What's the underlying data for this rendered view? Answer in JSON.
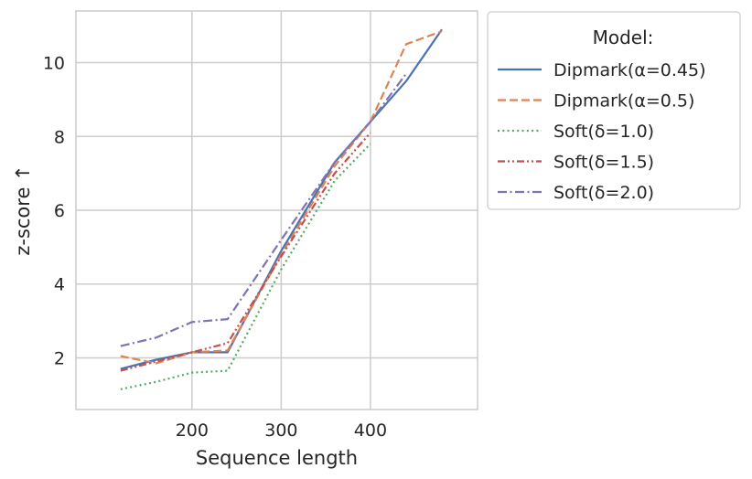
{
  "chart_data": {
    "type": "line",
    "xlabel": "Sequence length",
    "ylabel": "z-score ↑",
    "xlim": [
      70,
      520
    ],
    "ylim": [
      0.6,
      11.4
    ],
    "xticks": [
      200,
      300,
      400
    ],
    "yticks": [
      2,
      4,
      6,
      8,
      10
    ],
    "grid": true,
    "legend": {
      "title": "Model:",
      "placement": "outside-right-top"
    },
    "series": [
      {
        "name": "Dipmark(α=0.45)",
        "color": "#4C72B0",
        "dash": "solid",
        "x": [
          120,
          160,
          200,
          240,
          300,
          360,
          400,
          440,
          480
        ],
        "y": [
          1.7,
          1.95,
          2.15,
          2.15,
          4.9,
          7.3,
          8.4,
          9.5,
          10.9
        ]
      },
      {
        "name": "Dipmark(α=0.5)",
        "color": "#DD8452",
        "dash": "dashed",
        "x": [
          120,
          160,
          200,
          240,
          300,
          360,
          400,
          440,
          480
        ],
        "y": [
          2.05,
          1.85,
          2.15,
          2.2,
          4.8,
          7.2,
          8.4,
          10.5,
          10.85
        ]
      },
      {
        "name": "Soft(δ=1.0)",
        "color": "#55A868",
        "dash": "dotted",
        "x": [
          120,
          160,
          200,
          240,
          300,
          360,
          400
        ],
        "y": [
          1.15,
          1.35,
          1.6,
          1.65,
          4.4,
          6.8,
          7.8
        ]
      },
      {
        "name": "Soft(δ=1.5)",
        "color": "#C44E52",
        "dash": "dashdotdot",
        "x": [
          120,
          160,
          200,
          240,
          300,
          360,
          400
        ],
        "y": [
          1.65,
          1.9,
          2.15,
          2.4,
          4.75,
          7.0,
          8.1
        ]
      },
      {
        "name": "Soft(δ=2.0)",
        "color": "#8172B2",
        "dash": "dashdot",
        "x": [
          120,
          160,
          200,
          240,
          300,
          360,
          400,
          440
        ],
        "y": [
          2.32,
          2.55,
          2.97,
          3.05,
          5.2,
          7.3,
          8.4,
          9.7
        ]
      }
    ]
  }
}
